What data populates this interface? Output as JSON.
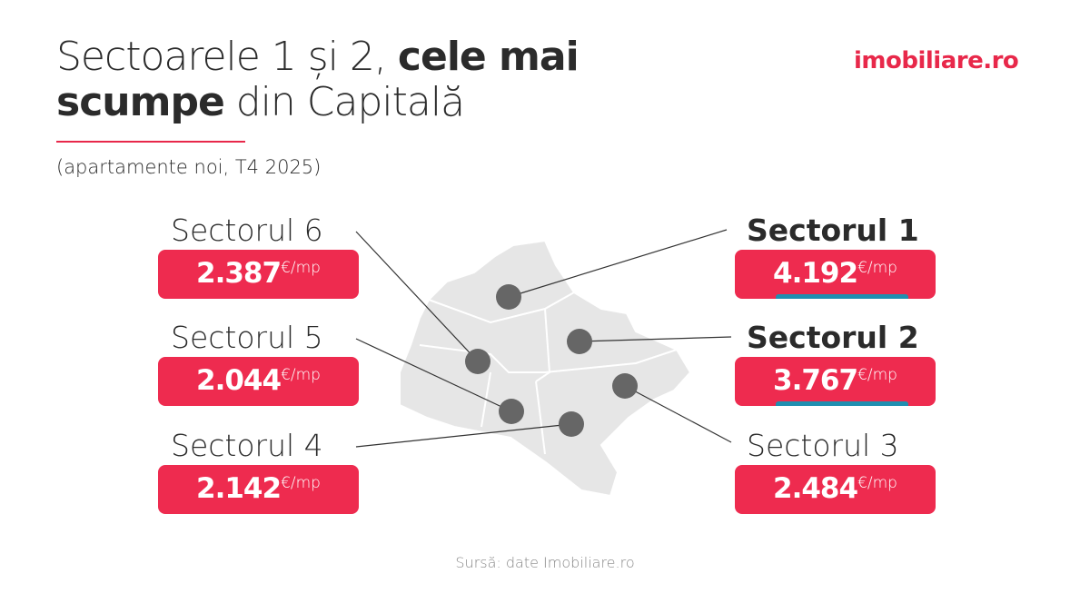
{
  "title": {
    "part1": "Sectoarele 1 și 2, ",
    "bold1": "cele mai",
    "bold2": "scumpe",
    "part2": " din Capitală"
  },
  "subtitle": "(apartamente noi, T4 2025)",
  "logo": "imobiliare.ro",
  "unit": "€/mp",
  "sectors": [
    {
      "name": "Sectorul 6",
      "value": "2.387"
    },
    {
      "name": "Sectorul 5",
      "value": "2.044"
    },
    {
      "name": "Sectorul 4",
      "value": "2.142"
    },
    {
      "name": "Sectorul 1",
      "value": "4.192"
    },
    {
      "name": "Sectorul 2",
      "value": "3.767"
    },
    {
      "name": "Sectorul 3",
      "value": "2.484"
    }
  ],
  "source": "Sursă: date Imobiliare.ro",
  "colors": {
    "accent": "#ee2b4f",
    "highlight": "#1f8fb0",
    "map": "#e6e6e6",
    "dot": "#666666"
  }
}
